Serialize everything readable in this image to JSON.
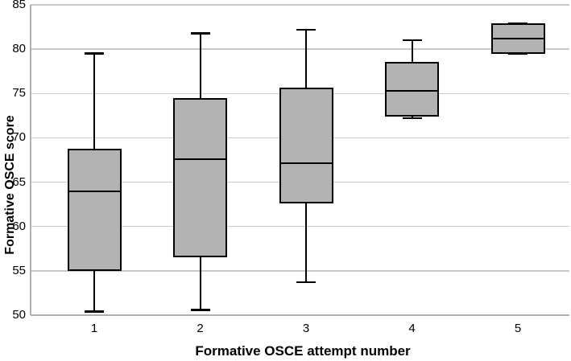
{
  "chart_data": {
    "type": "boxplot",
    "title": "",
    "xlabel": "Formative OSCE attempt number",
    "ylabel": "Formative OSCE score",
    "categories": [
      "1",
      "2",
      "3",
      "4",
      "5"
    ],
    "ylim": [
      50,
      85
    ],
    "yticks": [
      50,
      55,
      60,
      65,
      70,
      75,
      80,
      85
    ],
    "grid": "horizontal gridlines at every y tick",
    "legend": "none",
    "series": [
      {
        "category": "1",
        "whisker_low": 50.4,
        "q1": 55.0,
        "median": 64.0,
        "q3": 68.8,
        "whisker_high": 79.5
      },
      {
        "category": "2",
        "whisker_low": 50.6,
        "q1": 56.5,
        "median": 67.6,
        "q3": 74.5,
        "whisker_high": 81.8
      },
      {
        "category": "3",
        "whisker_low": 53.7,
        "q1": 62.6,
        "median": 67.1,
        "q3": 75.7,
        "whisker_high": 82.2
      },
      {
        "category": "4",
        "whisker_low": 72.2,
        "q1": 72.4,
        "median": 75.3,
        "q3": 78.6,
        "whisker_high": 81.0
      },
      {
        "category": "5",
        "whisker_low": 79.5,
        "q1": 79.5,
        "median": 81.2,
        "q3": 82.9,
        "whisker_high": 82.9
      }
    ],
    "colors": {
      "box_fill": "#b3b3b3",
      "box_border": "#000000",
      "median": "#000000",
      "whisker": "#000000",
      "gridline": "#c9c9c9",
      "axis_line": "#b0b0b0",
      "text": "#000000",
      "background": "#ffffff"
    }
  }
}
